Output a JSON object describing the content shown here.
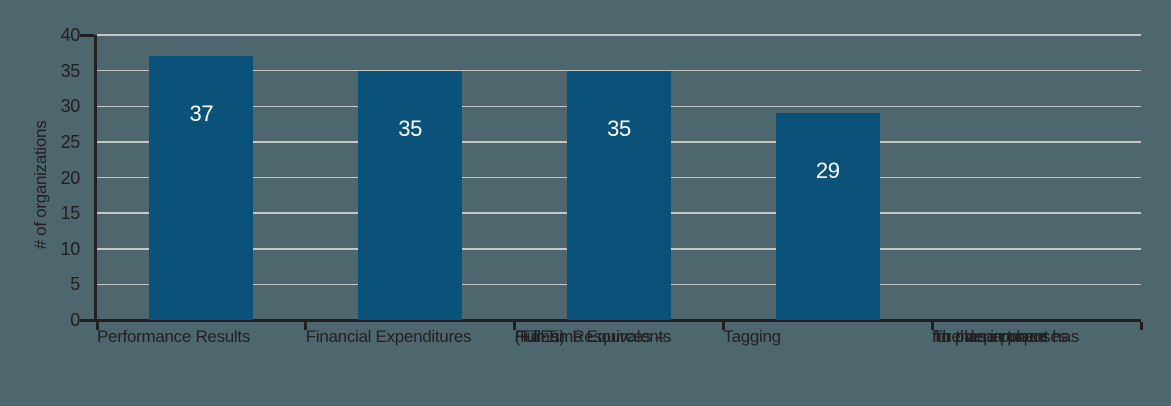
{
  "chart_data": {
    "type": "bar",
    "title": "",
    "xlabel": "",
    "ylabel": "# of organizations",
    "categories": [
      {
        "lines": [
          "Performance Results"
        ]
      },
      {
        "lines": [
          "Financial Expenditures"
        ]
      },
      {
        "lines": [
          "Human Resources –",
          "Full-Time Equivalents",
          "(FTEs)"
        ]
      },
      {
        "lines": [
          "Tagging"
        ]
      },
      {
        "lines": [
          "The department has",
          "no plan in place",
          "for these purposes"
        ]
      }
    ],
    "values": [
      37,
      35,
      35,
      29,
      0
    ],
    "bar_value_labels": [
      "37",
      "35",
      "35",
      "29",
      ""
    ],
    "ylim": [
      0,
      40
    ],
    "yticks": [
      0,
      5,
      10,
      15,
      20,
      25,
      30,
      35,
      40
    ],
    "grid": true,
    "legend": null,
    "colors": {
      "background": "#4E676E",
      "bar": "#0A527A",
      "gridline": "#C6C8C7",
      "axis": "#231F20",
      "text": "#231F20",
      "bar_label_text": "#FFFFFF"
    }
  }
}
